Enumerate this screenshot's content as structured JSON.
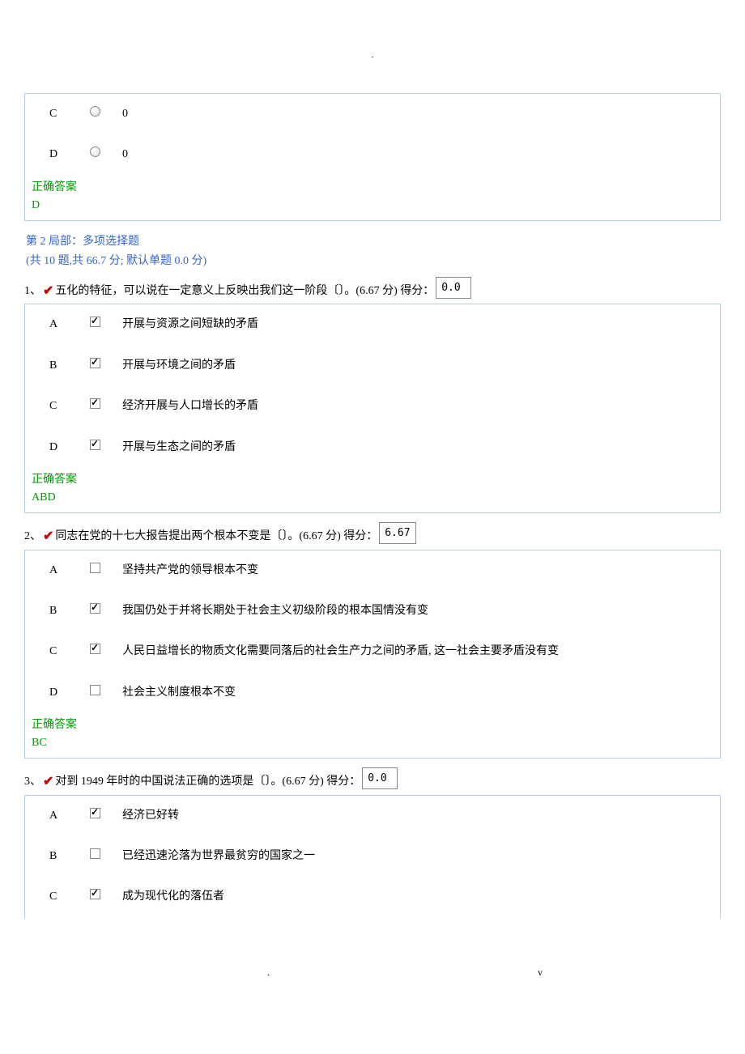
{
  "topDot": ".",
  "prevQuestion": {
    "options": [
      {
        "letter": "C",
        "text": "0",
        "checked": false
      },
      {
        "letter": "D",
        "text": "0",
        "checked": false
      }
    ],
    "answerLabel": "正确答案",
    "answerValue": "D"
  },
  "section2": {
    "header": "第 2 局部：多项选择题",
    "sub": "(共 10 题,共 66.7 分;  默认单题 0.0 分)"
  },
  "q1": {
    "num": "1、",
    "text": "五化的特征，可以说在一定意义上反映出我们这一阶段〔〕。(6.67 分) 得分：",
    "score": "0.0",
    "options": [
      {
        "letter": "A",
        "text": "开展与资源之间短缺的矛盾",
        "checked": true
      },
      {
        "letter": "B",
        "text": "开展与环境之间的矛盾",
        "checked": true
      },
      {
        "letter": "C",
        "text": "经济开展与人口增长的矛盾",
        "checked": true
      },
      {
        "letter": "D",
        "text": "开展与生态之间的矛盾",
        "checked": true
      }
    ],
    "answerLabel": "正确答案",
    "answerValue": "ABD"
  },
  "q2": {
    "num": "2、",
    "text": "同志在党的十七大报告提出两个根本不变是〔〕。(6.67 分) 得分：",
    "score": "6.67",
    "options": [
      {
        "letter": "A",
        "text": "坚持共产党的领导根本不变",
        "checked": false
      },
      {
        "letter": "B",
        "text": "我国仍处于并将长期处于社会主义初级阶段的根本国情没有变",
        "checked": true
      },
      {
        "letter": "C",
        "text": "人民日益增长的物质文化需要同落后的社会生产力之间的矛盾, 这一社会主要矛盾没有变",
        "checked": true
      },
      {
        "letter": "D",
        "text": "社会主义制度根本不变",
        "checked": false
      }
    ],
    "answerLabel": "正确答案",
    "answerValue": "BC"
  },
  "q3": {
    "num": "3、",
    "text": "对到 1949 年时的中国说法正确的选项是〔〕。(6.67 分) 得分：",
    "score": "0.0",
    "options": [
      {
        "letter": "A",
        "text": "经济已好转",
        "checked": true
      },
      {
        "letter": "B",
        "text": "已经迅速沦落为世界最贫穷的国家之一",
        "checked": false
      },
      {
        "letter": "C",
        "text": "成为现代化的落伍者",
        "checked": true
      }
    ]
  },
  "footer": {
    "left": ".",
    "right": "v"
  }
}
